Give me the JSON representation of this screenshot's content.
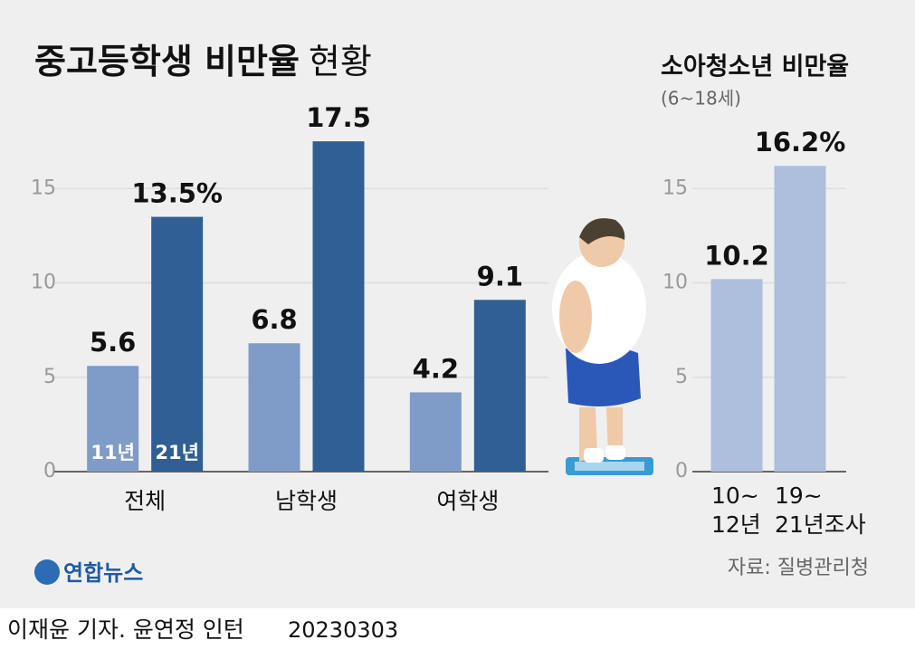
{
  "chart_data": [
    {
      "type": "bar",
      "title": "중고등학생 비만율",
      "title_suffix": "현황",
      "categories": [
        "전체",
        "남학생",
        "여학생"
      ],
      "series": [
        {
          "name": "11년",
          "color": "#7f9bc7",
          "values": [
            5.6,
            6.8,
            4.2
          ]
        },
        {
          "name": "21년",
          "color": "#2f5f94",
          "values": [
            13.5,
            17.5,
            9.1
          ],
          "value_labels": [
            "13.5%",
            "17.5",
            "9.1"
          ]
        }
      ],
      "ylim": [
        0,
        20
      ],
      "yticks": [
        0,
        5,
        10,
        15
      ],
      "grid": true
    },
    {
      "type": "bar",
      "title": "소아청소년 비만율",
      "subtitle": "(6~18세)",
      "categories": [
        [
          "10~",
          "12년"
        ],
        [
          "19~",
          "21년조사"
        ]
      ],
      "values": [
        10.2,
        16.2
      ],
      "value_labels": [
        "10.2",
        "16.2%"
      ],
      "color": "#adbfdd",
      "ylim": [
        0,
        20
      ],
      "yticks": [
        0,
        5,
        10,
        15
      ],
      "grid": true,
      "source": "자료: 질병관리청"
    }
  ],
  "logo": "연합뉴스",
  "credit": "이재윤 기자. 윤연정 인턴",
  "date": "20230303"
}
